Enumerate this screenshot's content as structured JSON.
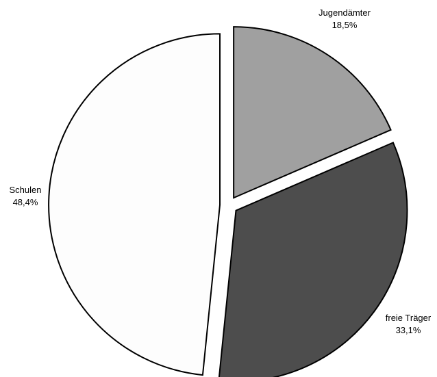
{
  "chart_data": {
    "type": "pie",
    "title": "",
    "slices": [
      {
        "label": "Jugendämter",
        "value": 18.5,
        "value_label": "18,5%",
        "color": "#a0a0a0"
      },
      {
        "label": "freie Träger",
        "value": 33.1,
        "value_label": "33,1%",
        "color": "#4d4d4d"
      },
      {
        "label": "Schulen",
        "value": 48.4,
        "value_label": "48,4%",
        "color": "#fdfdfd"
      }
    ],
    "start_angle_deg": 0,
    "direction": "clockwise",
    "exploded": true,
    "legend": "none"
  }
}
